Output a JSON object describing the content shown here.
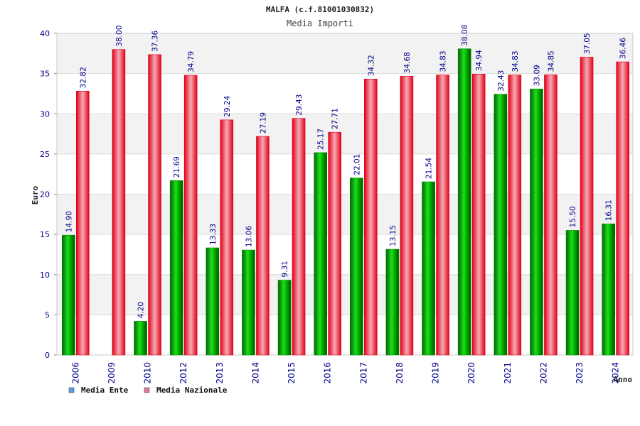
{
  "chart_data": {
    "type": "bar",
    "title": "MALFA (c.f.81001030832)",
    "subtitle": "Media Importi",
    "xlabel": "Anno",
    "ylabel": "Euro",
    "ylim": [
      0,
      40
    ],
    "yticks": [
      "0",
      "5",
      "10",
      "15",
      "20",
      "25",
      "30",
      "35",
      "40"
    ],
    "grid": true,
    "legend_position": "bottom-left",
    "categories": [
      "2006",
      "2009",
      "2010",
      "2012",
      "2013",
      "2014",
      "2015",
      "2016",
      "2017",
      "2018",
      "2019",
      "2020",
      "2021",
      "2022",
      "2023",
      "2024"
    ],
    "series": [
      {
        "name": "Media Ente",
        "legend_color": "#5aa0e6",
        "color": "#00b800",
        "values": [
          14.9,
          null,
          4.2,
          21.69,
          13.33,
          13.06,
          9.31,
          25.17,
          22.01,
          13.15,
          21.54,
          38.08,
          32.43,
          33.09,
          15.5,
          16.31
        ],
        "labels": [
          "14.90",
          "",
          "4.20",
          "21.69",
          "13.33",
          "13.06",
          "9.31",
          "25.17",
          "22.01",
          "13.15",
          "21.54",
          "38.08",
          "32.43",
          "33.09",
          "15.50",
          "16.31"
        ]
      },
      {
        "name": "Media Nazionale",
        "legend_color": "#e07a9c",
        "color": "#e8001c",
        "values": [
          32.82,
          38.0,
          37.36,
          34.79,
          29.24,
          27.19,
          29.43,
          27.71,
          34.32,
          34.68,
          34.83,
          34.94,
          34.83,
          34.85,
          37.05,
          36.46
        ],
        "labels": [
          "32.82",
          "38.00",
          "37.36",
          "34.79",
          "29.24",
          "27.19",
          "29.43",
          "27.71",
          "34.32",
          "34.68",
          "34.83",
          "34.94",
          "34.83",
          "34.85",
          "37.05",
          "36.46"
        ]
      }
    ]
  }
}
